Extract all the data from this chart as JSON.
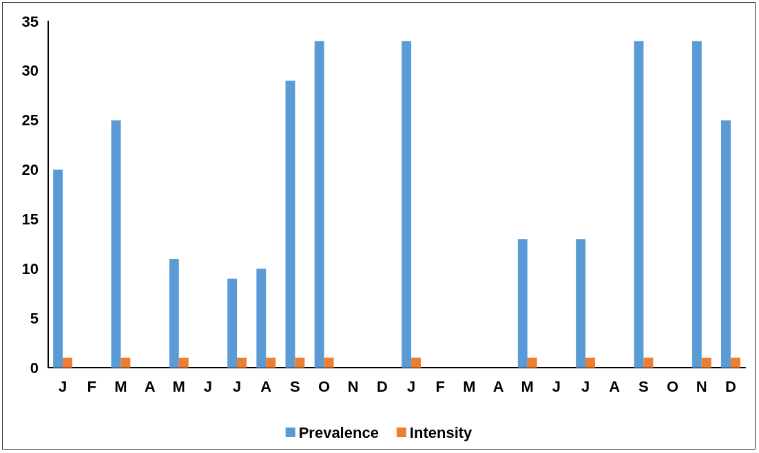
{
  "chart_data": {
    "type": "bar",
    "categories": [
      "J",
      "F",
      "M",
      "A",
      "M",
      "J",
      "J",
      "A",
      "S",
      "O",
      "N",
      "D",
      "J",
      "F",
      "M",
      "A",
      "M",
      "J",
      "J",
      "A",
      "S",
      "O",
      "N",
      "D"
    ],
    "series": [
      {
        "name": "Prevalence",
        "color": "#5b9bd5",
        "values": [
          20,
          0,
          25,
          0,
          11,
          0,
          9,
          10,
          29,
          33,
          0,
          0,
          33,
          0,
          0,
          0,
          13,
          0,
          13,
          0,
          33,
          0,
          33,
          25
        ]
      },
      {
        "name": "Intensity",
        "color": "#ed7d31",
        "values": [
          1,
          0,
          1,
          0,
          1,
          0,
          1,
          1,
          1,
          1,
          0,
          0,
          1,
          0,
          0,
          0,
          1,
          0,
          1,
          0,
          1,
          0,
          1,
          1
        ]
      }
    ],
    "ylim": [
      0,
      35
    ],
    "yticks": [
      0,
      5,
      10,
      15,
      20,
      25,
      30,
      35
    ],
    "grid": false,
    "legend": "bottom"
  }
}
